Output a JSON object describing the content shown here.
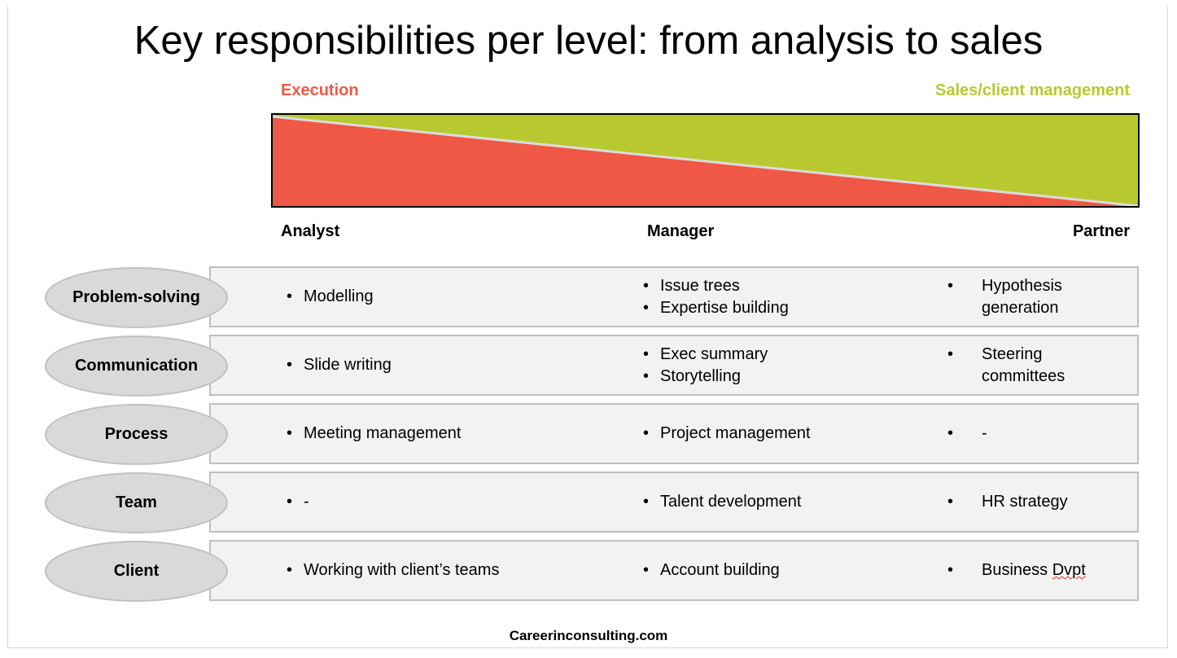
{
  "title": "Key responsibilities per level: from analysis to sales",
  "gradient": {
    "left_label": "Execution",
    "right_label": "Sales/client management",
    "left_color": "#ef5844",
    "right_color": "#b8c92f"
  },
  "levels": [
    "Analyst",
    "Manager",
    "Partner"
  ],
  "rows": [
    {
      "category": "Problem-solving",
      "cells": [
        [
          "Modelling"
        ],
        [
          "Issue trees",
          "Expertise building"
        ],
        [
          "Hypothesis generation"
        ]
      ]
    },
    {
      "category": "Communication",
      "cells": [
        [
          "Slide writing"
        ],
        [
          "Exec summary",
          "Storytelling"
        ],
        [
          "Steering committees"
        ]
      ]
    },
    {
      "category": "Process",
      "cells": [
        [
          "Meeting management"
        ],
        [
          "Project management"
        ],
        [
          "-"
        ]
      ]
    },
    {
      "category": "Team",
      "cells": [
        [
          "-"
        ],
        [
          "Talent development"
        ],
        [
          "HR strategy"
        ]
      ]
    },
    {
      "category": "Client",
      "cells": [
        [
          "Working with client’s teams"
        ],
        [
          "Account building"
        ],
        [
          "Business Dvpt"
        ]
      ]
    }
  ],
  "footer": "Careerinconsulting.com"
}
